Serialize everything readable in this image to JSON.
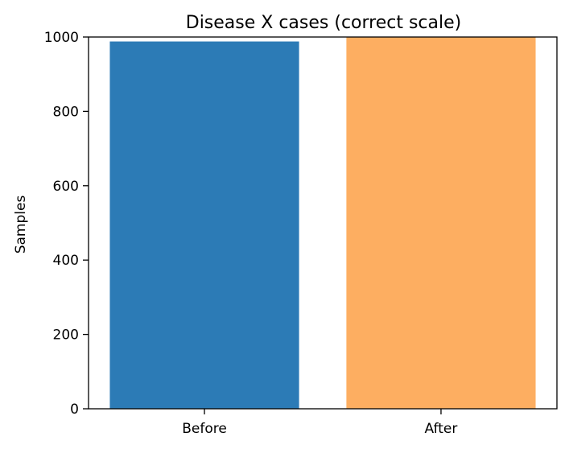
{
  "chart_data": {
    "type": "bar",
    "title": "Disease X cases (correct scale)",
    "xlabel": "",
    "ylabel": "Samples",
    "categories": [
      "Before",
      "After"
    ],
    "values": [
      988,
      1000
    ],
    "colors": [
      "#2c7bb6",
      "#fdae61"
    ],
    "ylim": [
      0,
      1000
    ],
    "yticks": [
      0,
      200,
      400,
      600,
      800,
      1000
    ],
    "grid": false,
    "legend": "none"
  }
}
